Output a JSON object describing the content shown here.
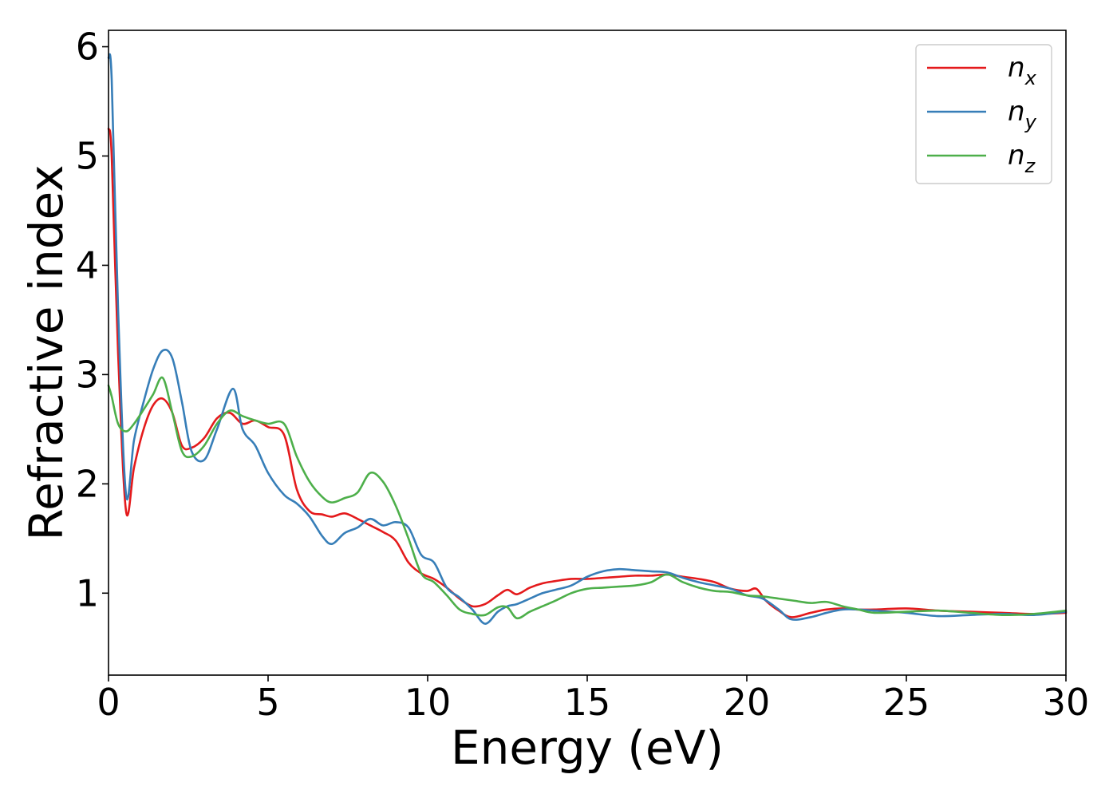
{
  "chart_data": {
    "type": "line",
    "title": "",
    "xlabel": "Energy (eV)",
    "ylabel": "Refractive index",
    "xlim": [
      0,
      30
    ],
    "ylim": [
      0.25,
      6.15
    ],
    "xticks": [
      0,
      5,
      10,
      15,
      20,
      25,
      30
    ],
    "yticks": [
      1,
      2,
      3,
      4,
      5,
      6
    ],
    "grid": false,
    "legend_position": "top-right",
    "series": [
      {
        "name": "n_x",
        "label_main": "n",
        "label_sub": "x",
        "color": "#e41a1c",
        "x": [
          0,
          0.1,
          0.3,
          0.55,
          0.8,
          1.1,
          1.4,
          1.7,
          2.0,
          2.3,
          2.6,
          3.0,
          3.4,
          3.8,
          4.2,
          4.6,
          5.0,
          5.5,
          5.9,
          6.3,
          6.7,
          7.0,
          7.4,
          7.8,
          8.2,
          8.6,
          9.0,
          9.4,
          9.8,
          10.2,
          10.6,
          11.0,
          11.4,
          11.8,
          12.2,
          12.5,
          12.8,
          13.2,
          13.6,
          14.0,
          14.5,
          15.0,
          15.5,
          16.0,
          16.5,
          17.0,
          17.5,
          18.0,
          18.5,
          19.0,
          19.5,
          20.0,
          20.3,
          20.6,
          21.0,
          21.4,
          22.0,
          22.5,
          23.0,
          23.5,
          24.0,
          25.0,
          26.0,
          27.0,
          28.0,
          29.0,
          30.0
        ],
        "y": [
          5.25,
          5.0,
          3.2,
          1.75,
          2.15,
          2.5,
          2.72,
          2.78,
          2.65,
          2.35,
          2.33,
          2.42,
          2.6,
          2.65,
          2.55,
          2.58,
          2.52,
          2.45,
          1.95,
          1.75,
          1.72,
          1.7,
          1.73,
          1.68,
          1.62,
          1.56,
          1.48,
          1.28,
          1.18,
          1.13,
          1.05,
          0.95,
          0.88,
          0.9,
          0.98,
          1.03,
          0.99,
          1.05,
          1.09,
          1.11,
          1.13,
          1.13,
          1.14,
          1.15,
          1.16,
          1.16,
          1.17,
          1.15,
          1.13,
          1.1,
          1.04,
          1.02,
          1.04,
          0.93,
          0.84,
          0.78,
          0.82,
          0.85,
          0.86,
          0.85,
          0.85,
          0.86,
          0.84,
          0.83,
          0.82,
          0.81,
          0.82
        ]
      },
      {
        "name": "n_y",
        "label_main": "n",
        "label_sub": "y",
        "color": "#377eb8",
        "x": [
          0,
          0.1,
          0.3,
          0.55,
          0.8,
          1.1,
          1.4,
          1.7,
          2.0,
          2.3,
          2.6,
          3.0,
          3.4,
          3.9,
          4.2,
          4.6,
          5.0,
          5.5,
          5.9,
          6.3,
          6.7,
          7.0,
          7.4,
          7.8,
          8.2,
          8.6,
          9.0,
          9.4,
          9.8,
          10.2,
          10.6,
          11.0,
          11.4,
          11.8,
          12.2,
          12.5,
          12.8,
          13.2,
          13.6,
          14.0,
          14.5,
          15.0,
          15.5,
          16.0,
          16.5,
          17.0,
          17.5,
          18.0,
          18.5,
          19.0,
          19.5,
          20.0,
          20.5,
          21.0,
          21.4,
          22.0,
          22.5,
          23.0,
          23.5,
          24.0,
          25.0,
          26.0,
          27.0,
          28.0,
          29.0,
          30.0
        ],
        "y": [
          5.9,
          5.7,
          3.6,
          1.9,
          2.4,
          2.75,
          3.05,
          3.22,
          3.15,
          2.75,
          2.3,
          2.22,
          2.5,
          2.87,
          2.5,
          2.35,
          2.1,
          1.9,
          1.82,
          1.7,
          1.52,
          1.45,
          1.55,
          1.6,
          1.68,
          1.62,
          1.65,
          1.6,
          1.35,
          1.28,
          1.05,
          0.96,
          0.85,
          0.72,
          0.83,
          0.88,
          0.9,
          0.95,
          1.0,
          1.03,
          1.07,
          1.15,
          1.2,
          1.22,
          1.21,
          1.2,
          1.19,
          1.14,
          1.1,
          1.07,
          1.04,
          0.98,
          0.95,
          0.85,
          0.76,
          0.78,
          0.82,
          0.85,
          0.85,
          0.84,
          0.82,
          0.79,
          0.8,
          0.81,
          0.8,
          0.83
        ]
      },
      {
        "name": "n_z",
        "label_main": "n",
        "label_sub": "z",
        "color": "#4daf4a",
        "x": [
          0,
          0.1,
          0.3,
          0.55,
          0.8,
          1.1,
          1.4,
          1.7,
          2.0,
          2.3,
          2.6,
          3.0,
          3.4,
          3.8,
          4.2,
          4.6,
          5.0,
          5.5,
          5.9,
          6.3,
          6.7,
          7.0,
          7.4,
          7.8,
          8.2,
          8.6,
          9.0,
          9.4,
          9.8,
          10.2,
          10.6,
          11.0,
          11.4,
          11.8,
          12.2,
          12.5,
          12.8,
          13.2,
          13.6,
          14.0,
          14.5,
          15.0,
          15.5,
          16.0,
          16.5,
          17.0,
          17.5,
          18.0,
          18.5,
          19.0,
          19.5,
          20.0,
          20.5,
          21.0,
          21.5,
          22.0,
          22.5,
          23.0,
          23.5,
          24.0,
          25.0,
          26.0,
          27.0,
          28.0,
          29.0,
          30.0
        ],
        "y": [
          2.9,
          2.8,
          2.55,
          2.48,
          2.55,
          2.68,
          2.82,
          2.97,
          2.65,
          2.3,
          2.25,
          2.35,
          2.55,
          2.67,
          2.62,
          2.58,
          2.55,
          2.55,
          2.25,
          2.02,
          1.88,
          1.83,
          1.87,
          1.92,
          2.1,
          2.02,
          1.8,
          1.5,
          1.18,
          1.1,
          0.98,
          0.85,
          0.81,
          0.8,
          0.87,
          0.87,
          0.77,
          0.83,
          0.88,
          0.93,
          1.0,
          1.04,
          1.05,
          1.06,
          1.07,
          1.1,
          1.17,
          1.1,
          1.05,
          1.02,
          1.01,
          0.98,
          0.97,
          0.95,
          0.93,
          0.91,
          0.92,
          0.88,
          0.85,
          0.82,
          0.83,
          0.84,
          0.82,
          0.8,
          0.81,
          0.84
        ]
      }
    ]
  }
}
